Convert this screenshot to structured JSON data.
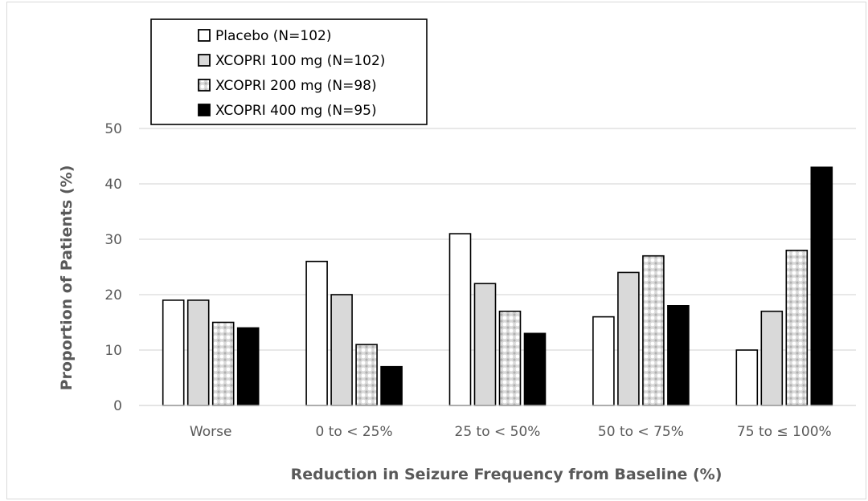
{
  "chart_data": {
    "type": "bar",
    "title": "",
    "xlabel": "Reduction in Seizure Frequency from Baseline (%)",
    "ylabel": "Proportion of Patients (%)",
    "ylim": [
      0,
      50
    ],
    "yticks": [
      0,
      10,
      20,
      30,
      40,
      50
    ],
    "grid": true,
    "legend_position": "top-left",
    "categories": [
      "Worse",
      "0 to < 25%",
      "25 to < 50%",
      "50 to < 75%",
      "75 to ≤ 100%"
    ],
    "series": [
      {
        "name": "Placebo (N=102)",
        "values": [
          19,
          26,
          31,
          16,
          10
        ],
        "color": "#ffffff",
        "pattern": "none"
      },
      {
        "name": "XCOPRI 100 mg (N=102)",
        "values": [
          19,
          20,
          22,
          24,
          17
        ],
        "color": "#d9d9d9",
        "pattern": "none"
      },
      {
        "name": "XCOPRI 200 mg (N=98)",
        "values": [
          15,
          11,
          17,
          27,
          28
        ],
        "color": "#d9d9d9",
        "pattern": "dots"
      },
      {
        "name": "XCOPRI 400 mg (N=95)",
        "values": [
          14,
          7,
          13,
          18,
          43
        ],
        "color": "#000000",
        "pattern": "none"
      }
    ]
  }
}
